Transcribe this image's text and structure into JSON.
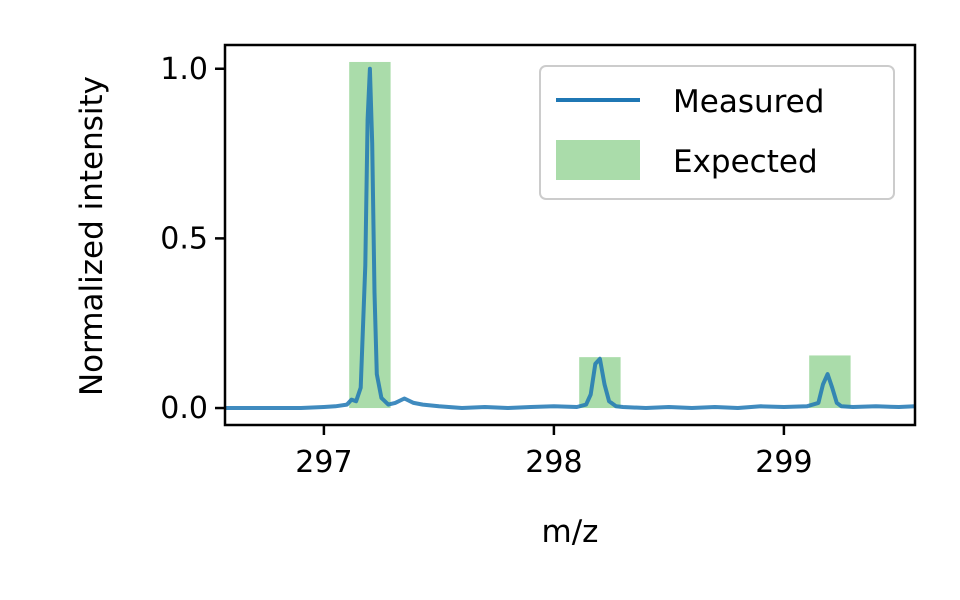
{
  "chart_data": {
    "type": "line",
    "title": "",
    "xlabel": "m/z",
    "ylabel": "Normalized intensity",
    "xlim": [
      296.57,
      299.57
    ],
    "ylim": [
      -0.05,
      1.07
    ],
    "x_ticks": [
      297,
      298,
      299
    ],
    "x_tick_labels": [
      "297",
      "298",
      "299"
    ],
    "y_ticks": [
      0.0,
      0.5,
      1.0
    ],
    "y_tick_labels": [
      "0.0",
      "0.5",
      "1.0"
    ],
    "grid": false,
    "legend_position": "top-right",
    "series": [
      {
        "name": "Measured",
        "kind": "line",
        "color": "#1f77b4",
        "x": [
          296.57,
          296.7,
          296.8,
          296.9,
          297.0,
          297.05,
          297.1,
          297.12,
          297.14,
          297.16,
          297.18,
          297.19,
          297.2,
          297.21,
          297.22,
          297.23,
          297.25,
          297.28,
          297.31,
          297.35,
          297.39,
          297.43,
          297.5,
          297.6,
          297.7,
          297.8,
          297.9,
          298.0,
          298.1,
          298.14,
          298.16,
          298.18,
          298.2,
          298.22,
          298.24,
          298.27,
          298.3,
          298.4,
          298.5,
          298.6,
          298.7,
          298.8,
          298.9,
          299.0,
          299.1,
          299.15,
          299.17,
          299.19,
          299.21,
          299.23,
          299.25,
          299.3,
          299.4,
          299.5,
          299.57
        ],
        "y": [
          0.0,
          0.0,
          0.0,
          0.0,
          0.003,
          0.005,
          0.01,
          0.025,
          0.02,
          0.06,
          0.42,
          0.85,
          1.0,
          0.78,
          0.34,
          0.1,
          0.03,
          0.01,
          0.015,
          0.028,
          0.015,
          0.01,
          0.005,
          0.0,
          0.003,
          0.0,
          0.003,
          0.005,
          0.003,
          0.01,
          0.04,
          0.13,
          0.145,
          0.07,
          0.02,
          0.005,
          0.003,
          0.0,
          0.003,
          0.0,
          0.003,
          0.0,
          0.005,
          0.003,
          0.005,
          0.015,
          0.07,
          0.1,
          0.06,
          0.015,
          0.005,
          0.003,
          0.005,
          0.003,
          0.005
        ]
      },
      {
        "name": "Expected",
        "kind": "bar",
        "color": "#aadcaa",
        "x": [
          297.2,
          298.2,
          299.2
        ],
        "width": 0.18,
        "values": [
          1.02,
          0.15,
          0.155
        ]
      }
    ]
  }
}
